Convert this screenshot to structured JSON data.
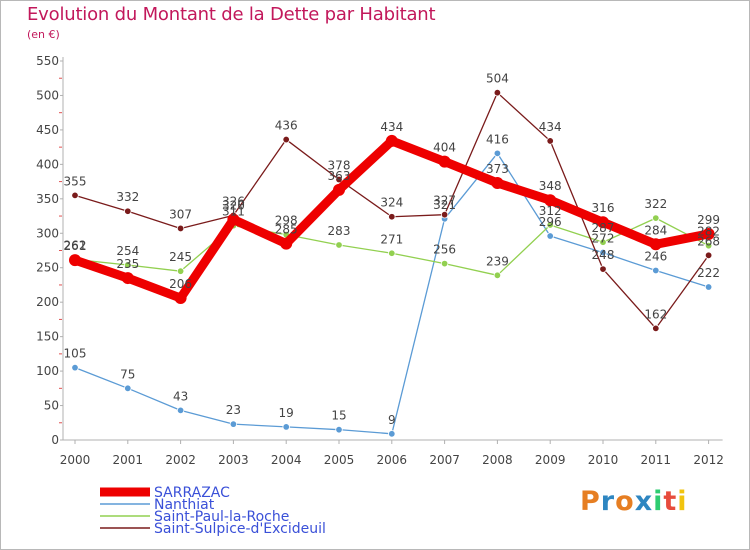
{
  "header": {
    "title": "Evolution du Montant de la Dette par Habitant",
    "subtitle": "(en €)"
  },
  "logo": {
    "text": "Proxiti",
    "colors": [
      "#e67e22",
      "#2e86c1",
      "#e67e22",
      "#2e86c1",
      "#2ecc71",
      "#e74c3c",
      "#f1c40f"
    ]
  },
  "chart_data": {
    "type": "line",
    "title": "Evolution du Montant de la Dette par Habitant",
    "ylabel": "(en €)",
    "xlabel": "",
    "categories": [
      "2000",
      "2001",
      "2002",
      "2003",
      "2004",
      "2005",
      "2006",
      "2007",
      "2008",
      "2009",
      "2010",
      "2011",
      "2012"
    ],
    "ylim": [
      0,
      550
    ],
    "yticks": [
      0,
      50,
      100,
      150,
      200,
      250,
      300,
      350,
      400,
      450,
      500,
      550
    ],
    "grid": false,
    "legend": "bottom-left",
    "series": [
      {
        "name": "SARRAZAC",
        "color": "#ee0000",
        "weight": "thick",
        "values": [
          261,
          235,
          206,
          320,
          285,
          363,
          434,
          404,
          373,
          348,
          316,
          284,
          299
        ]
      },
      {
        "name": "Nanthiat",
        "color": "#5b9bd5",
        "weight": "thin",
        "values": [
          105,
          75,
          43,
          23,
          19,
          15,
          9,
          321,
          416,
          296,
          272,
          246,
          222
        ]
      },
      {
        "name": "Saint-Paul-la-Roche",
        "color": "#92d050",
        "weight": "thin",
        "values": [
          262,
          254,
          245,
          311,
          298,
          283,
          271,
          256,
          239,
          312,
          287,
          322,
          282
        ]
      },
      {
        "name": "Saint-Sulpice-d'Excideuil",
        "color": "#7a1b1b",
        "weight": "thin",
        "values": [
          355,
          332,
          307,
          326,
          436,
          378,
          324,
          327,
          504,
          434,
          248,
          162,
          268
        ]
      }
    ]
  }
}
